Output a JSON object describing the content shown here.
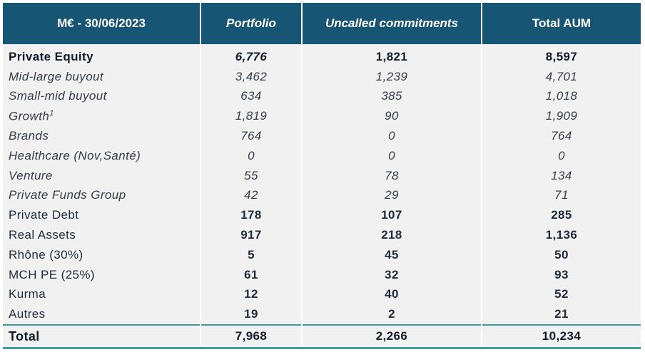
{
  "header": {
    "col0": "M€ - 30/06/2023",
    "col1": "Portfolio",
    "col2": "Uncalled commitments",
    "col3": "Total AUM"
  },
  "rows": [
    {
      "label": "Private Equity",
      "portfolio": "6,776",
      "uncalled": "1,821",
      "total": "8,597"
    },
    {
      "label": "Mid-large buyout",
      "portfolio": "3,462",
      "uncalled": "1,239",
      "total": "4,701"
    },
    {
      "label": "Small-mid buyout",
      "portfolio": "634",
      "uncalled": "385",
      "total": "1,018"
    },
    {
      "label": "Growth",
      "sup": "1",
      "portfolio": "1,819",
      "uncalled": "90",
      "total": "1,909"
    },
    {
      "label": "Brands",
      "portfolio": "764",
      "uncalled": "0",
      "total": "764"
    },
    {
      "label": "Healthcare (Nov,Santé)",
      "portfolio": "0",
      "uncalled": "0",
      "total": "0"
    },
    {
      "label": "Venture",
      "portfolio": "55",
      "uncalled": "78",
      "total": "134"
    },
    {
      "label": "Private Funds Group",
      "portfolio": "42",
      "uncalled": "29",
      "total": "71"
    },
    {
      "label": "Private Debt",
      "portfolio": "178",
      "uncalled": "107",
      "total": "285"
    },
    {
      "label": "Real Assets",
      "portfolio": "917",
      "uncalled": "218",
      "total": "1,136"
    },
    {
      "label": "Rhône (30%)",
      "portfolio": "5",
      "uncalled": "45",
      "total": "50"
    },
    {
      "label": "MCH PE (25%)",
      "portfolio": "61",
      "uncalled": "32",
      "total": "93"
    },
    {
      "label": "Kurma",
      "portfolio": "12",
      "uncalled": "40",
      "total": "52"
    },
    {
      "label": "Autres",
      "portfolio": "19",
      "uncalled": "2",
      "total": "21"
    }
  ],
  "total": {
    "label": "Total",
    "portfolio": "7,968",
    "uncalled": "2,266",
    "total": "10,234"
  },
  "colors": {
    "header_bg": "#165573",
    "cell_bg": "#f1f1f1",
    "rule": "#3a9e9a"
  }
}
